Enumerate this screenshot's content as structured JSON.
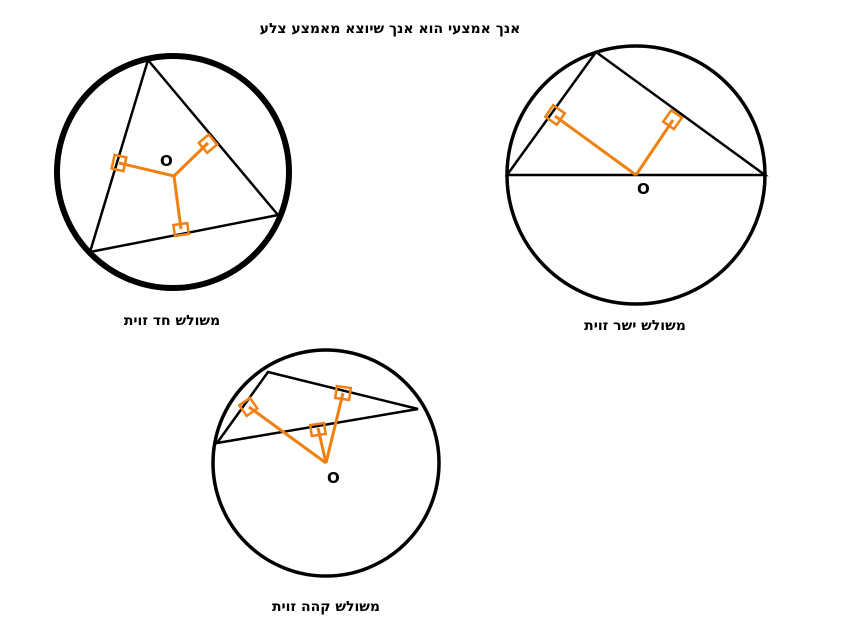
{
  "title": "אנך אמצעי הוא אנך שיוצא מאמצע צלע",
  "colors": {
    "stroke": "#000000",
    "perpendicular": "#f08010",
    "background": "#ffffff"
  },
  "diagrams": {
    "acute": {
      "caption": "משולש חד זוית",
      "center_label": "O"
    },
    "right": {
      "caption": "משולש ישר זוית",
      "center_label": "O"
    },
    "obtuse": {
      "caption": "משולש קהה זוית",
      "center_label": "O"
    }
  }
}
